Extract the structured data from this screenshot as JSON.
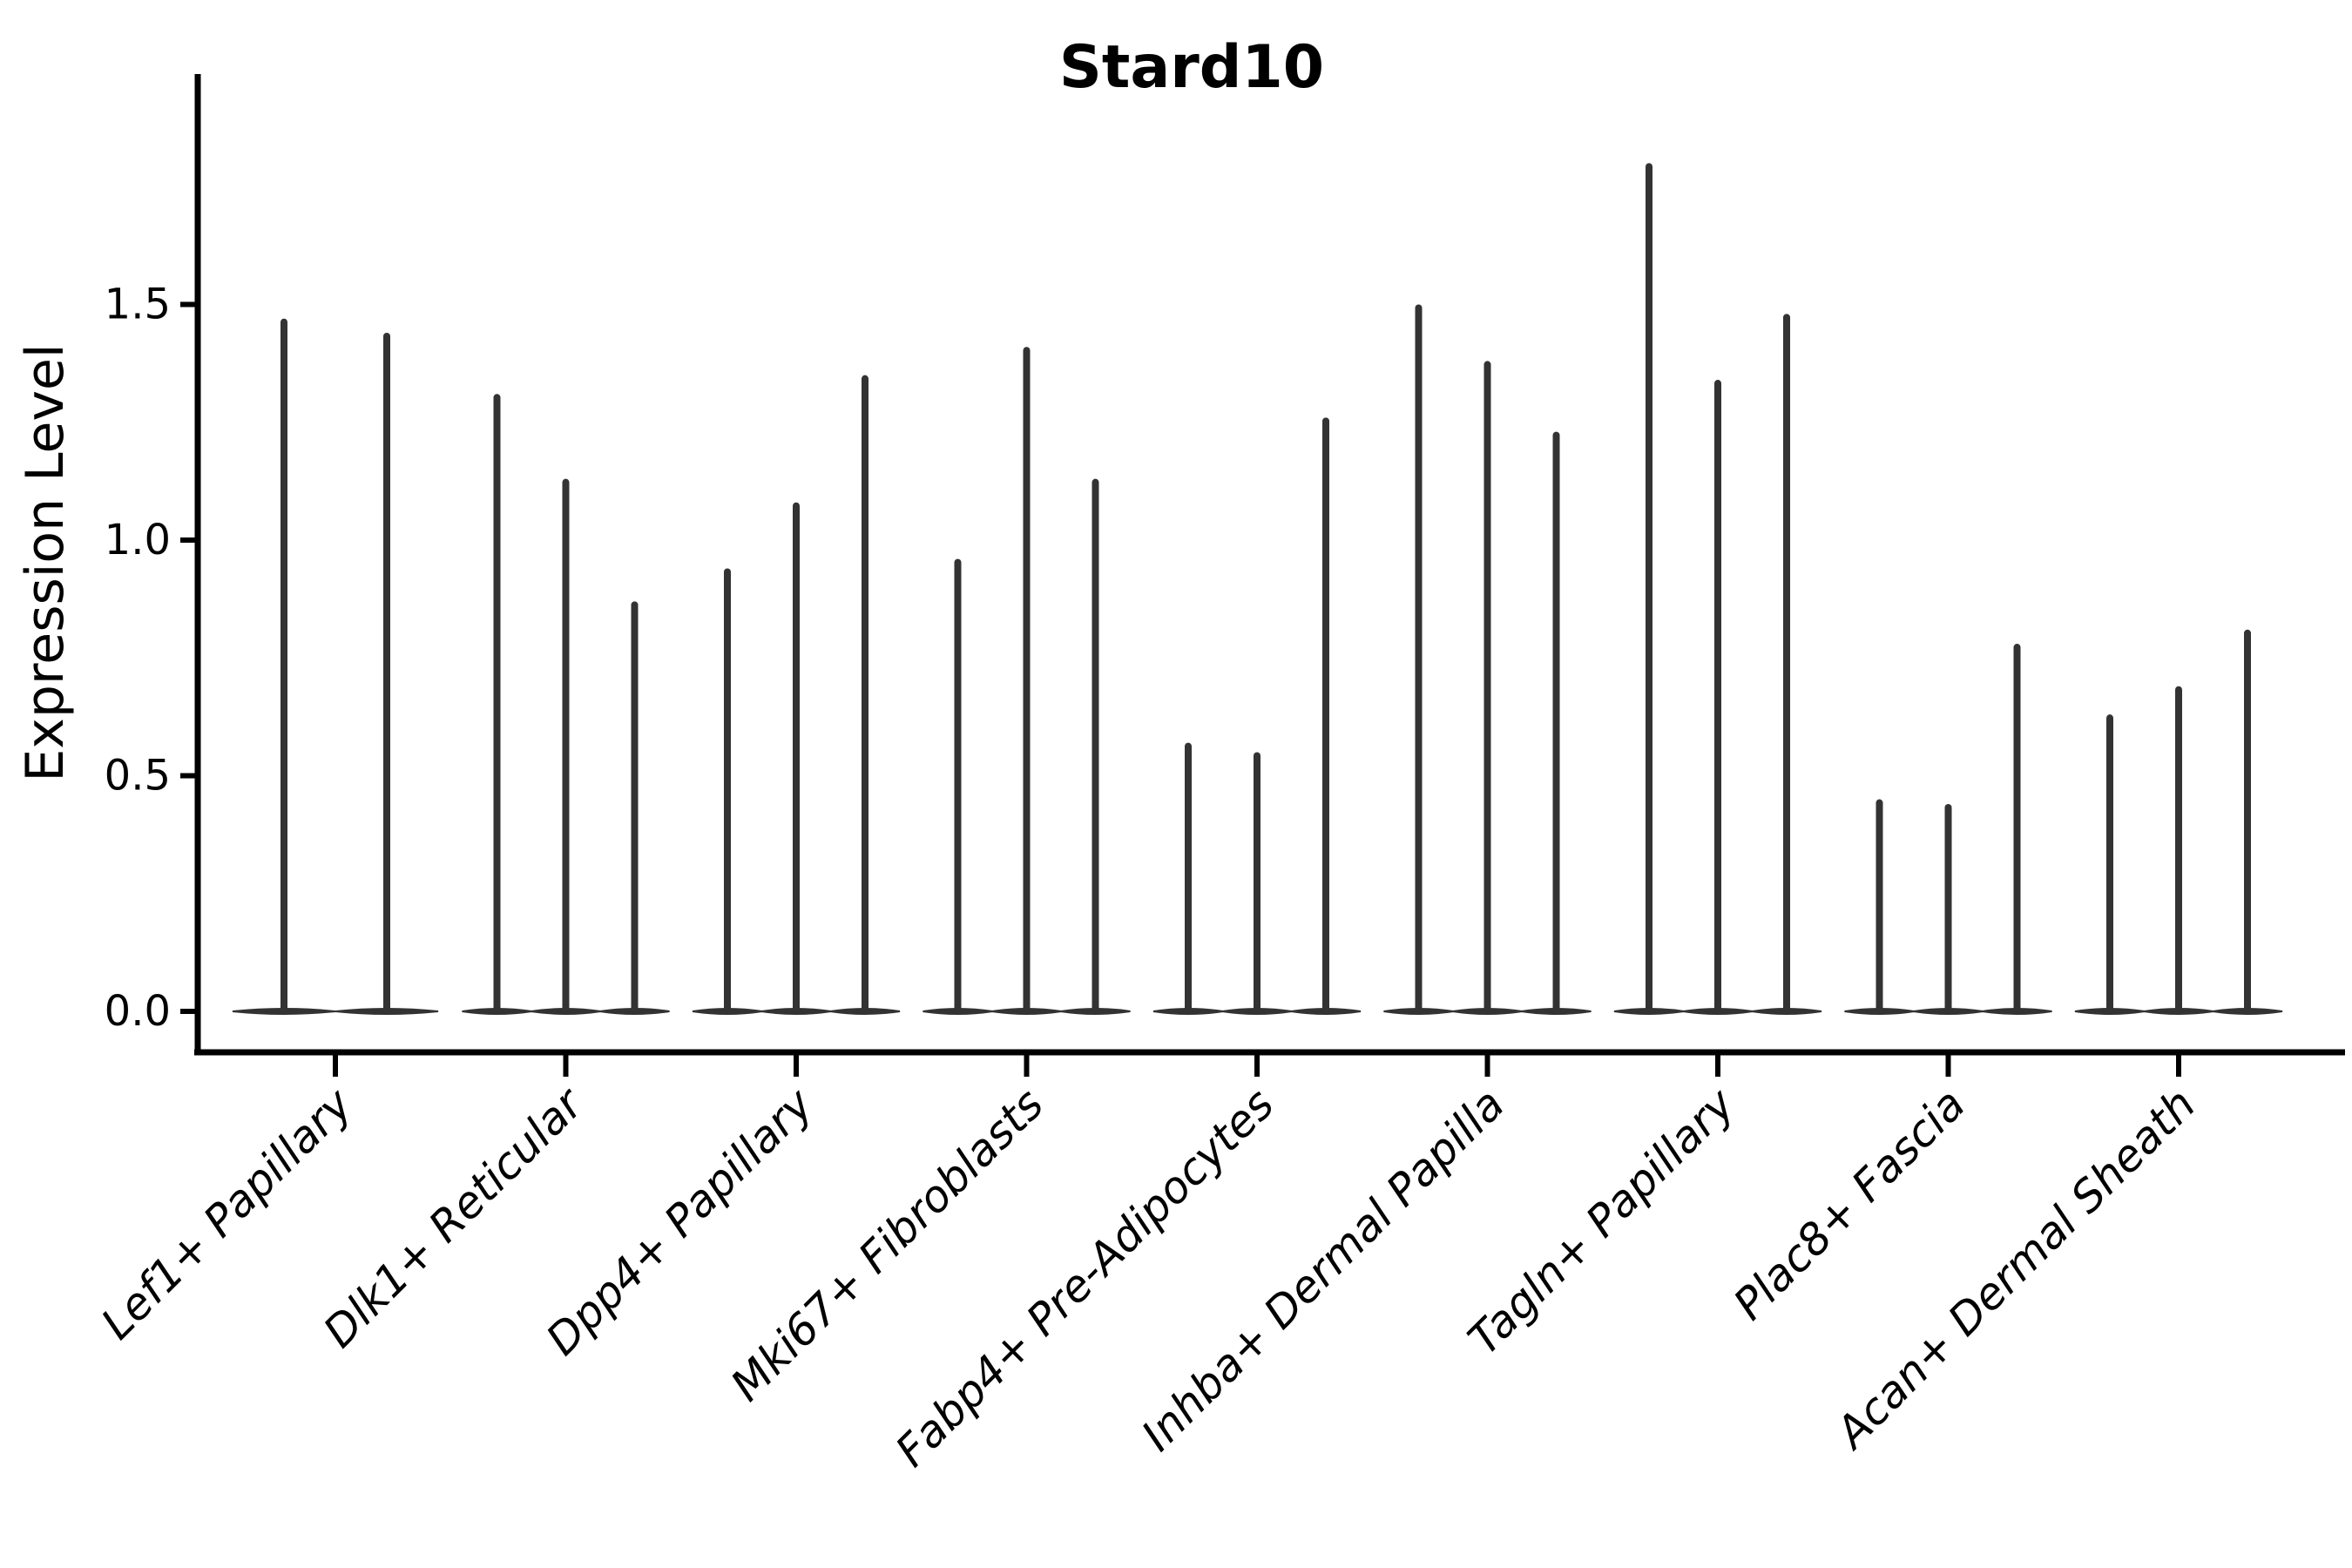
{
  "figure": {
    "title": "Stard10"
  },
  "chart_data": {
    "type": "violin",
    "title": "Stard10",
    "xlabel": "",
    "ylabel": "Expression Level",
    "yticks": [
      0.0,
      0.5,
      1.0,
      1.5
    ],
    "ylim": [
      -0.09,
      1.99
    ],
    "grid": false,
    "legend_position": "none",
    "background_color": "#ffffff",
    "axis_color": "#000000",
    "violin_color": "#333333",
    "x_tick_label_rotation_deg": 45,
    "x_tick_label_style": "italic",
    "violin_baseline_value": 0.0,
    "violin_shape_note": "zero-inflated: flat lens of density at 0 with a thin spike up to max expression",
    "categories": [
      "Lef1+ Papillary",
      "Dlk1+ Reticular",
      "Dpp4+ Papillary",
      "Mki67+ Fibroblasts",
      "Fabp4+ Pre-Adipocytes",
      "Inhba+ Dermal Papilla",
      "Tagln+ Papillary",
      "Plac8+ Fascia",
      "Acan+ Dermal Sheath"
    ],
    "series": [
      {
        "category": "Lef1+ Papillary",
        "violin_maxima": [
          1.47,
          1.44
        ]
      },
      {
        "category": "Dlk1+ Reticular",
        "violin_maxima": [
          1.31,
          1.13,
          0.87
        ]
      },
      {
        "category": "Dpp4+ Papillary",
        "violin_maxima": [
          0.94,
          1.08,
          1.35
        ]
      },
      {
        "category": "Mki67+ Fibroblasts",
        "violin_maxima": [
          0.96,
          1.41,
          1.13
        ]
      },
      {
        "category": "Fabp4+ Pre-Adipocytes",
        "violin_maxima": [
          0.57,
          0.55,
          1.26
        ]
      },
      {
        "category": "Inhba+ Dermal Papilla",
        "violin_maxima": [
          1.5,
          1.38,
          1.23
        ]
      },
      {
        "category": "Tagln+ Papillary",
        "violin_maxima": [
          1.8,
          1.34,
          1.48
        ]
      },
      {
        "category": "Plac8+ Fascia",
        "violin_maxima": [
          0.45,
          0.44,
          0.78
        ]
      },
      {
        "category": "Acan+ Dermal Sheath",
        "violin_maxima": [
          0.63,
          0.69,
          0.81
        ]
      }
    ]
  }
}
